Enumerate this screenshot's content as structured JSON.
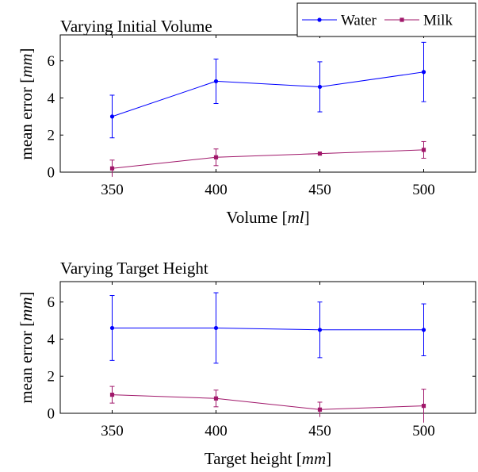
{
  "legend": [
    {
      "name": "Water",
      "color": "#0000ff",
      "marker": "circle"
    },
    {
      "name": "Milk",
      "color": "#a0176a",
      "marker": "square"
    }
  ],
  "chart_data": [
    {
      "type": "line",
      "title": "Varying Initial Volume",
      "xlabel": {
        "text": "Volume ",
        "unit": "ml"
      },
      "ylabel": {
        "text": "mean error ",
        "unit": "mm"
      },
      "x": [
        350,
        400,
        450,
        500
      ],
      "xticks": [
        350,
        400,
        450,
        500
      ],
      "yticks": [
        0,
        2,
        4,
        6
      ],
      "xlim": [
        325,
        525
      ],
      "ylim": [
        0,
        7.4
      ],
      "grid": false,
      "legend_position": "top-right",
      "series": [
        {
          "name": "Water",
          "color": "#0000ff",
          "values": [
            3.0,
            4.9,
            4.6,
            5.4
          ],
          "errors": [
            1.15,
            1.2,
            1.35,
            1.6
          ]
        },
        {
          "name": "Milk",
          "color": "#a0176a",
          "values": [
            0.2,
            0.8,
            1.0,
            1.2
          ],
          "errors": [
            0.45,
            0.45,
            0.0,
            0.45
          ]
        }
      ]
    },
    {
      "type": "line",
      "title": "Varying Target Height",
      "xlabel": {
        "text": "Target height ",
        "unit": "mm"
      },
      "ylabel": {
        "text": "mean error ",
        "unit": "mm"
      },
      "x": [
        350,
        400,
        450,
        500
      ],
      "xticks": [
        350,
        400,
        450,
        500
      ],
      "yticks": [
        0,
        2,
        4,
        6
      ],
      "xlim": [
        325,
        525
      ],
      "ylim": [
        0,
        7.1
      ],
      "grid": false,
      "series": [
        {
          "name": "Water",
          "color": "#0000ff",
          "values": [
            4.6,
            4.6,
            4.5,
            4.5
          ],
          "errors": [
            1.75,
            1.9,
            1.5,
            1.4
          ]
        },
        {
          "name": "Milk",
          "color": "#a0176a",
          "values": [
            1.0,
            0.8,
            0.2,
            0.4
          ],
          "errors": [
            0.45,
            0.45,
            0.4,
            0.9
          ]
        }
      ]
    }
  ]
}
